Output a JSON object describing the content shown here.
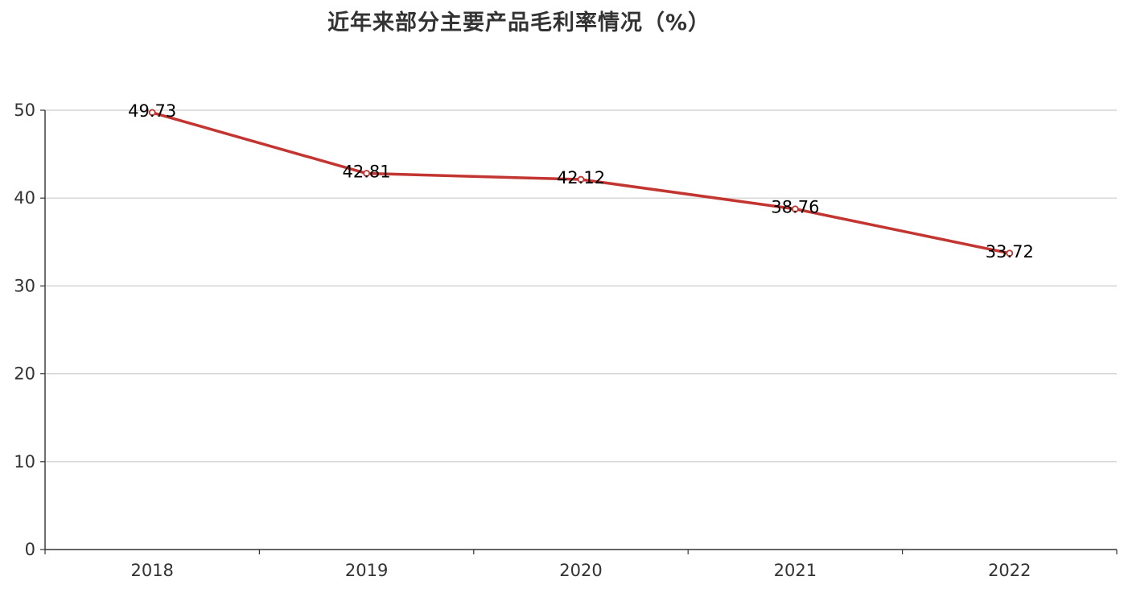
{
  "chart_data": {
    "type": "line",
    "title": "近年来部分主要产品毛利率情况（%）",
    "categories": [
      "2018",
      "2019",
      "2020",
      "2021",
      "2022"
    ],
    "series": [
      {
        "values": [
          49.73,
          42.81,
          42.12,
          38.76,
          33.72
        ],
        "data_labels": [
          "49.73",
          "42.81",
          "42.12",
          "38.76",
          "33.72"
        ],
        "color": "#c23531"
      }
    ],
    "ylim": [
      0,
      50
    ],
    "yticks": [
      0,
      10,
      20,
      30,
      40,
      50
    ],
    "ytick_labels": [
      "0",
      "10",
      "20",
      "30",
      "40",
      "50"
    ],
    "grid": true,
    "legend": "none"
  }
}
